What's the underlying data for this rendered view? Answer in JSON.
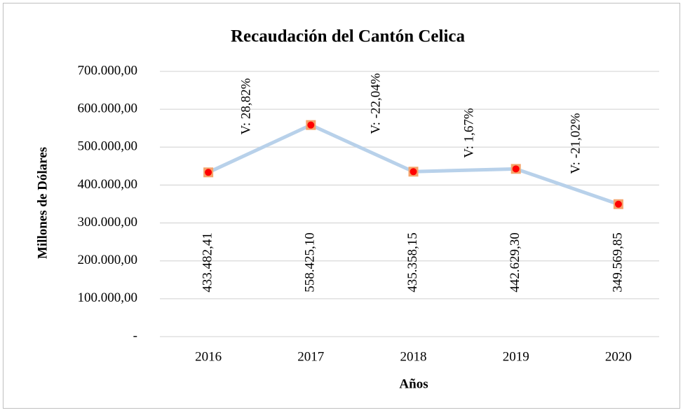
{
  "chart_data": {
    "type": "line",
    "title": "Recaudación del Cantón Celica",
    "x_label": "Años",
    "y_label": "Millones de Dólares",
    "categories": [
      "2016",
      "2017",
      "2018",
      "2019",
      "2020"
    ],
    "series": [
      {
        "name": "Recaudación",
        "color": "#b8d1ea",
        "marker_color": "#ff0000",
        "marker_edge": "#f4a46c",
        "values": [
          433482.41,
          558425.1,
          435358.15,
          442629.3,
          349569.85
        ],
        "value_labels": [
          "433.482,41",
          "558.425,10",
          "435.358,15",
          "442.629,30",
          "349.569,85"
        ]
      }
    ],
    "annotations": [
      "V: 28,82%",
      "V: -22,04%",
      "V: 1,67%",
      "V: -21,02%"
    ],
    "ylim": [
      0,
      700000
    ],
    "yticks": [
      {
        "value": 0,
        "label": "-"
      },
      {
        "value": 100000,
        "label": "100.000,00"
      },
      {
        "value": 200000,
        "label": "200.000,00"
      },
      {
        "value": 300000,
        "label": "300.000,00"
      },
      {
        "value": 400000,
        "label": "400.000,00"
      },
      {
        "value": 500000,
        "label": "500.000,00"
      },
      {
        "value": 600000,
        "label": "600.000,00"
      },
      {
        "value": 700000,
        "label": "700.000,00"
      }
    ],
    "grid": true
  }
}
